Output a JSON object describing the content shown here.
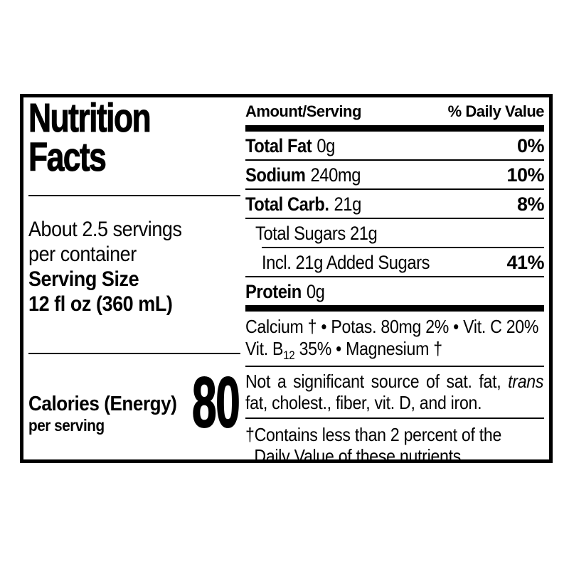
{
  "colors": {
    "text": "#000000",
    "background": "#ffffff",
    "border": "#000000"
  },
  "label": {
    "title_line1": "Nutrition",
    "title_line2": "Facts",
    "servings_line1": "About 2.5 servings",
    "servings_line2": "per container",
    "serving_size_label": "Serving Size",
    "serving_size_value": "12 fl oz (360 mL)",
    "calories_label": "Calories (Energy)",
    "calories_sub": "per serving",
    "calories_value": "80"
  },
  "nutrition": {
    "header": {
      "amount": "Amount/Serving",
      "daily_value": "% Daily Value"
    },
    "rows": [
      {
        "name": "Total Fat",
        "amount": "0g",
        "dv": "0%"
      },
      {
        "name": "Sodium",
        "amount": "240mg",
        "dv": "10%"
      },
      {
        "name": "Total Carb.",
        "amount": "21g",
        "dv": "8%"
      },
      {
        "name": "Total Sugars 21g",
        "amount": "",
        "dv": ""
      },
      {
        "name": "Incl. 21g Added Sugars",
        "amount": "",
        "dv": "41%"
      },
      {
        "name": "Protein",
        "amount": "0g",
        "dv": ""
      }
    ],
    "vitamins": {
      "line1": "Calcium † • Potas. 80mg 2% • Vit. C 20%",
      "line2_pre": "Vit. B",
      "line2_sub": "12",
      "line2_post": " 35% • Magnesium †"
    },
    "disclaimer": {
      "line1_pre": "Not a significant source of sat. fat, ",
      "line1_italic": "trans",
      "line2": "fat, cholest., fiber, vit. D, and iron."
    },
    "footnote": {
      "line1": "†Contains less than 2 percent of the",
      "line2": "Daily Value of these nutrients."
    }
  }
}
